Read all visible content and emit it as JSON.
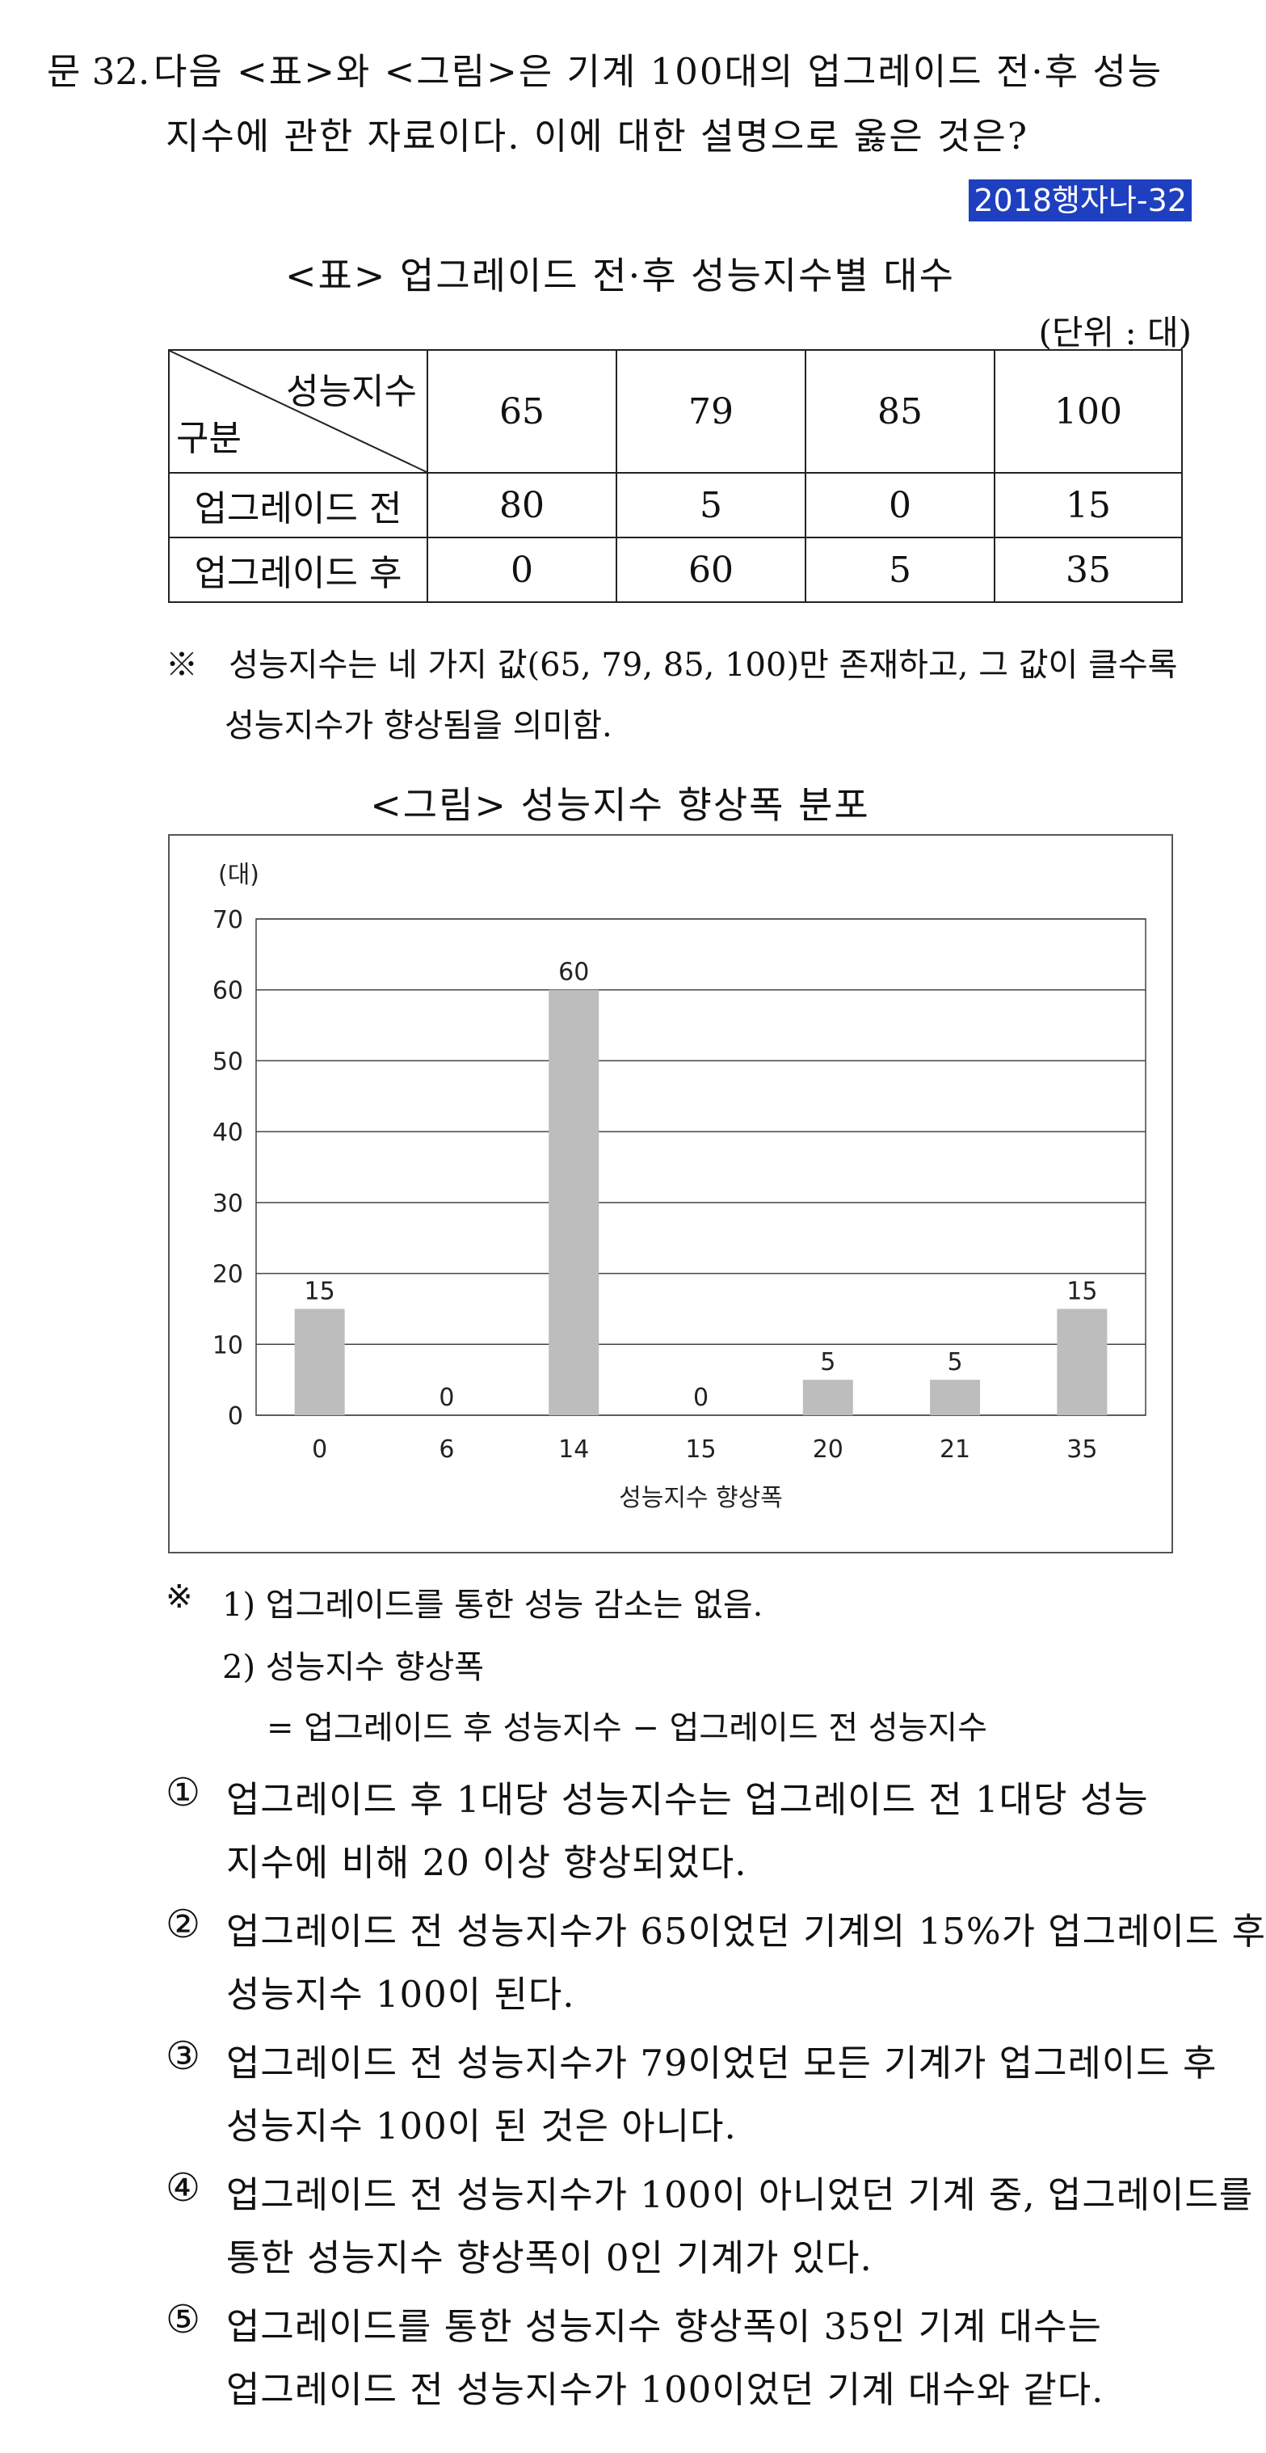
{
  "question": {
    "number": "문 32.",
    "line1": "다음 <표>와 <그림>은 기계 100대의 업그레이드 전·후 성능",
    "line2": "지수에 관한 자료이다. 이에 대한 설명으로 옳은 것은?",
    "tag": "2018행자나-32"
  },
  "table": {
    "title": "<표> 업그레이드 전·후 성능지수별 대수",
    "unit": "(단위 : 대)",
    "corner_top": "성능지수",
    "corner_bottom": "구분",
    "columns": [
      "65",
      "79",
      "85",
      "100"
    ],
    "rows": [
      {
        "label": "업그레이드 전",
        "values": [
          "80",
          "5",
          "0",
          "15"
        ]
      },
      {
        "label": "업그레이드 후",
        "values": [
          "0",
          "60",
          "5",
          "35"
        ]
      }
    ],
    "note_marker": "※",
    "note_line1": "성능지수는 네 가지 값(65, 79, 85, 100)만 존재하고, 그 값이 클수록",
    "note_line2": "성능지수가 향상됨을 의미함."
  },
  "figure": {
    "title": "<그림> 성능지수 향상폭 분포"
  },
  "chart_data": {
    "type": "bar",
    "categories": [
      "0",
      "6",
      "14",
      "15",
      "20",
      "21",
      "35"
    ],
    "values": [
      15,
      0,
      60,
      0,
      5,
      5,
      15
    ],
    "xlabel": "성능지수 향상폭",
    "ylabel": "(대)",
    "ylim": [
      0,
      70
    ],
    "yticks": [
      "0",
      "10",
      "20",
      "30",
      "40",
      "50",
      "60",
      "70"
    ],
    "grid": true,
    "bar_color": "#bdbdbd"
  },
  "footnotes": {
    "marker": "※",
    "line1": "1) 업그레이드를 통한 성능 감소는 없음.",
    "line2": "2) 성능지수 향상폭",
    "line3": "= 업그레이드 후 성능지수 − 업그레이드 전 성능지수"
  },
  "options": [
    {
      "mark": "①",
      "line1": "업그레이드 후 1대당 성능지수는 업그레이드 전 1대당 성능",
      "line2": "지수에 비해 20 이상 향상되었다."
    },
    {
      "mark": "②",
      "line1": "업그레이드 전 성능지수가 65이었던 기계의 15%가 업그레이드 후",
      "line2": "성능지수 100이 된다."
    },
    {
      "mark": "③",
      "line1": "업그레이드 전 성능지수가 79이었던 모든 기계가 업그레이드 후",
      "line2": "성능지수 100이 된 것은 아니다."
    },
    {
      "mark": "④",
      "line1": "업그레이드 전 성능지수가 100이 아니었던 기계 중, 업그레이드를",
      "line2": "통한 성능지수 향상폭이 0인 기계가 있다."
    },
    {
      "mark": "⑤",
      "line1": "업그레이드를 통한 성능지수 향상폭이 35인 기계 대수는",
      "line2": "업그레이드 전 성능지수가 100이었던 기계 대수와 같다."
    }
  ]
}
